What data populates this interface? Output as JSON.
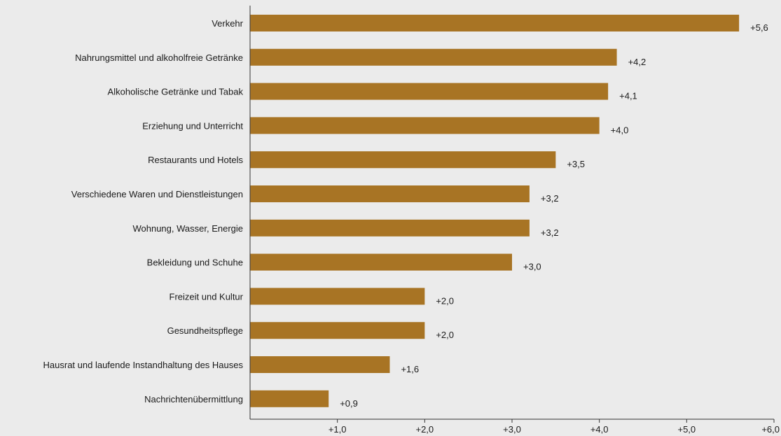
{
  "chart_data": {
    "type": "bar",
    "orientation": "horizontal",
    "categories": [
      "Verkehr",
      "Nahrungsmittel und alkoholfreie Getränke",
      "Alkoholische Getränke und Tabak",
      "Erziehung und Unterricht",
      "Restaurants und Hotels",
      "Verschiedene Waren und Dienstleistungen",
      "Wohnung, Wasser, Energie",
      "Bekleidung und Schuhe",
      "Freizeit und Kultur",
      "Gesundheitspflege",
      "Hausrat und laufende Instandhaltung des Hauses",
      "Nachrichtenübermittlung"
    ],
    "values": [
      5.6,
      4.2,
      4.1,
      4.0,
      3.5,
      3.2,
      3.2,
      3.0,
      2.0,
      2.0,
      1.6,
      0.9
    ],
    "value_labels": [
      "+5,6",
      "+4,2",
      "+4,1",
      "+4,0",
      "+3,5",
      "+3,2",
      "+3,2",
      "+3,0",
      "+2,0",
      "+2,0",
      "+1,6",
      "+0,9"
    ],
    "xticks": [
      1,
      2,
      3,
      4,
      5,
      6
    ],
    "xtick_labels": [
      "+1,0",
      "+2,0",
      "+3,0",
      "+4,0",
      "+5,0",
      "+6,0"
    ],
    "xlim": [
      0,
      6
    ],
    "grid": false,
    "bar_color": "#a87424",
    "background": "#ebebeb",
    "axis_color": "#333333"
  }
}
